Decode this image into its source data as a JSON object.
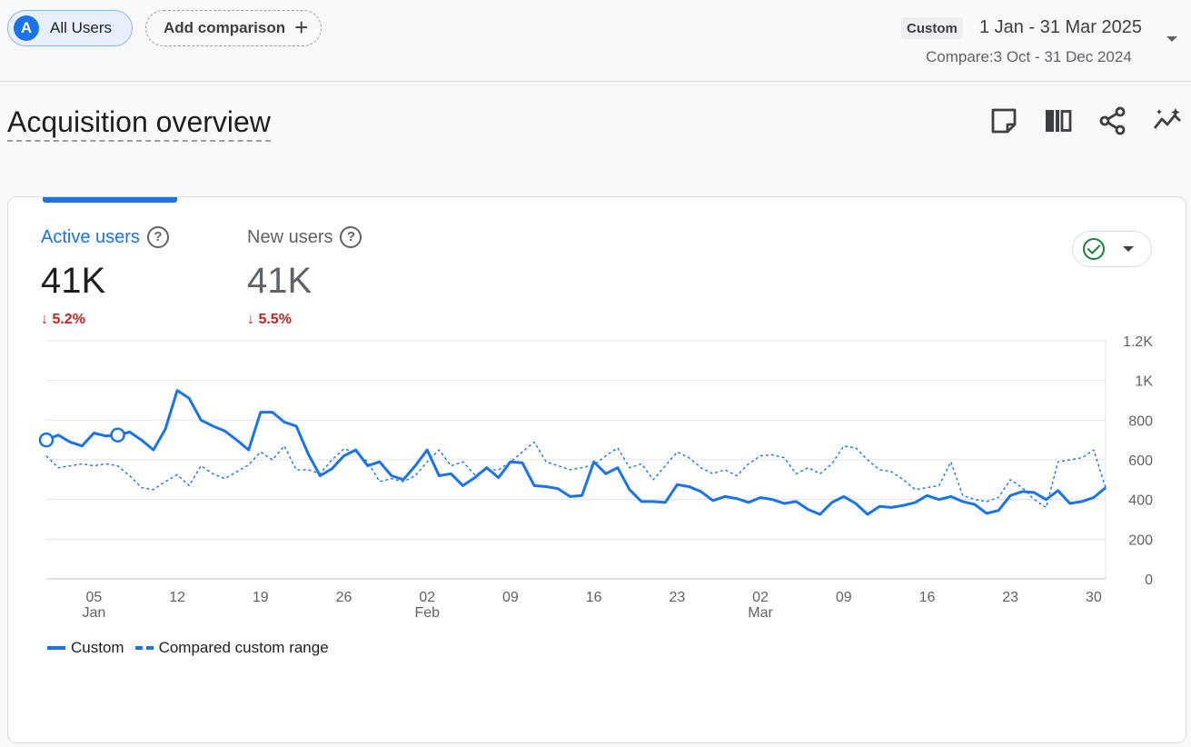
{
  "header": {
    "segment_chip": {
      "avatar_letter": "A",
      "label": "All Users"
    },
    "add_comparison": {
      "label": "Add comparison",
      "icon": "plus-icon"
    },
    "date_range": {
      "badge": "Custom",
      "range": "1 Jan - 31 Mar 2025",
      "compare": "Compare:3 Oct - 31 Dec 2024"
    }
  },
  "page": {
    "title": "Acquisition overview",
    "tools": [
      "note-icon",
      "compare-columns-icon",
      "share-icon",
      "insights-icon"
    ]
  },
  "card": {
    "metrics": [
      {
        "label": "Active users",
        "value": "41K",
        "change": "5.2%",
        "direction": "down",
        "selected": true
      },
      {
        "label": "New users",
        "value": "41K",
        "change": "5.5%",
        "direction": "down",
        "selected": false
      }
    ],
    "status_icon": "check-circle-icon",
    "legend": {
      "current": "Custom",
      "compare": "Compared custom range"
    }
  },
  "colors": {
    "accent": "#1a73e8",
    "negative": "#c5221f",
    "ok": "#188038"
  },
  "chart_data": {
    "type": "line",
    "ylim": [
      0,
      1200
    ],
    "y_ticks": [
      "0",
      "200",
      "400",
      "600",
      "800",
      "1K",
      "1.2K"
    ],
    "x_ticks": [
      {
        "day": 5,
        "label": "05",
        "sub": "Jan"
      },
      {
        "day": 12,
        "label": "12",
        "sub": ""
      },
      {
        "day": 19,
        "label": "19",
        "sub": ""
      },
      {
        "day": 26,
        "label": "26",
        "sub": ""
      },
      {
        "day": 33,
        "label": "02",
        "sub": "Feb"
      },
      {
        "day": 40,
        "label": "09",
        "sub": ""
      },
      {
        "day": 47,
        "label": "16",
        "sub": ""
      },
      {
        "day": 54,
        "label": "23",
        "sub": ""
      },
      {
        "day": 61,
        "label": "02",
        "sub": "Mar"
      },
      {
        "day": 68,
        "label": "09",
        "sub": ""
      },
      {
        "day": 75,
        "label": "16",
        "sub": ""
      },
      {
        "day": 82,
        "label": "23",
        "sub": ""
      },
      {
        "day": 89,
        "label": "30",
        "sub": ""
      }
    ],
    "series": [
      {
        "name": "Custom",
        "style": "solid",
        "values": [
          700,
          725,
          690,
          670,
          735,
          720,
          725,
          740,
          700,
          650,
          755,
          950,
          910,
          800,
          770,
          745,
          700,
          650,
          840,
          840,
          790,
          770,
          630,
          520,
          555,
          620,
          650,
          570,
          590,
          520,
          500,
          570,
          650,
          520,
          530,
          470,
          510,
          560,
          510,
          590,
          585,
          470,
          465,
          455,
          415,
          420,
          590,
          530,
          560,
          450,
          390,
          390,
          385,
          475,
          465,
          440,
          395,
          415,
          405,
          385,
          410,
          400,
          380,
          390,
          350,
          325,
          385,
          415,
          380,
          325,
          365,
          360,
          370,
          385,
          420,
          400,
          415,
          390,
          375,
          330,
          345,
          420,
          440,
          435,
          400,
          445,
          380,
          390,
          410,
          460
        ]
      },
      {
        "name": "Compared custom range",
        "style": "dashed",
        "values": [
          620,
          560,
          570,
          580,
          570,
          580,
          570,
          520,
          460,
          450,
          490,
          525,
          470,
          570,
          530,
          505,
          540,
          575,
          640,
          600,
          670,
          550,
          550,
          530,
          600,
          655,
          640,
          590,
          490,
          505,
          490,
          520,
          590,
          650,
          570,
          590,
          525,
          550,
          550,
          590,
          640,
          690,
          590,
          570,
          550,
          560,
          575,
          620,
          660,
          560,
          580,
          500,
          570,
          640,
          610,
          560,
          530,
          550,
          520,
          580,
          620,
          625,
          610,
          530,
          560,
          530,
          580,
          670,
          660,
          600,
          550,
          540,
          500,
          450,
          460,
          470,
          590,
          420,
          400,
          390,
          410,
          500,
          460,
          400,
          360,
          590,
          600,
          610,
          650,
          460
        ]
      }
    ],
    "markers": [
      {
        "series": "Custom",
        "day": 1
      },
      {
        "series": "Custom",
        "day": 7
      }
    ],
    "grid": true
  }
}
